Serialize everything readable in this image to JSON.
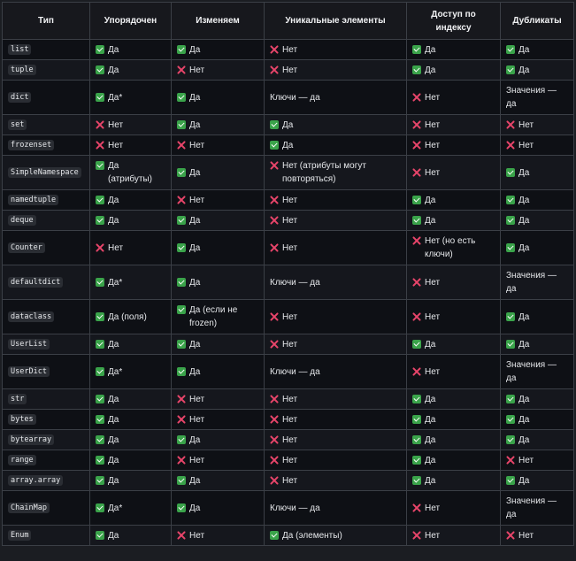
{
  "headers": [
    "Тип",
    "Упорядочен",
    "Изменяем",
    "Уникальные элементы",
    "Доступ по индексу",
    "Дубликаты"
  ],
  "rows": [
    {
      "type": "list",
      "h": "r1",
      "cells": [
        {
          "icon": "yes",
          "text": "Да"
        },
        {
          "icon": "yes",
          "text": "Да"
        },
        {
          "icon": "no",
          "text": "Нет"
        },
        {
          "icon": "yes",
          "text": "Да"
        },
        {
          "icon": "yes",
          "text": "Да"
        }
      ]
    },
    {
      "type": "tuple",
      "h": "r1",
      "cells": [
        {
          "icon": "yes",
          "text": "Да"
        },
        {
          "icon": "no",
          "text": "Нет"
        },
        {
          "icon": "no",
          "text": "Нет"
        },
        {
          "icon": "yes",
          "text": "Да"
        },
        {
          "icon": "yes",
          "text": "Да"
        }
      ]
    },
    {
      "type": "dict",
      "h": "r2",
      "cells": [
        {
          "icon": "yes",
          "text": "Да*"
        },
        {
          "icon": "yes",
          "text": "Да"
        },
        {
          "icon": "",
          "text": "Ключи — да"
        },
        {
          "icon": "no",
          "text": "Нет"
        },
        {
          "icon": "",
          "text": "Значения — да"
        }
      ]
    },
    {
      "type": "set",
      "h": "r1",
      "cells": [
        {
          "icon": "no",
          "text": "Нет"
        },
        {
          "icon": "yes",
          "text": "Да"
        },
        {
          "icon": "yes",
          "text": "Да"
        },
        {
          "icon": "no",
          "text": "Нет"
        },
        {
          "icon": "no",
          "text": "Нет"
        }
      ]
    },
    {
      "type": "frozenset",
      "h": "r1",
      "cells": [
        {
          "icon": "no",
          "text": "Нет"
        },
        {
          "icon": "no",
          "text": "Нет"
        },
        {
          "icon": "yes",
          "text": "Да"
        },
        {
          "icon": "no",
          "text": "Нет"
        },
        {
          "icon": "no",
          "text": "Нет"
        }
      ]
    },
    {
      "type": "SimpleNamespace",
      "h": "r2",
      "cells": [
        {
          "icon": "yes",
          "text": "Да (атрибуты)"
        },
        {
          "icon": "yes",
          "text": "Да"
        },
        {
          "icon": "no",
          "text": "Нет (атрибуты могут повторяться)"
        },
        {
          "icon": "no",
          "text": "Нет"
        },
        {
          "icon": "yes",
          "text": "Да"
        }
      ]
    },
    {
      "type": "namedtuple",
      "h": "r1",
      "cells": [
        {
          "icon": "yes",
          "text": "Да"
        },
        {
          "icon": "no",
          "text": "Нет"
        },
        {
          "icon": "no",
          "text": "Нет"
        },
        {
          "icon": "yes",
          "text": "Да"
        },
        {
          "icon": "yes",
          "text": "Да"
        }
      ]
    },
    {
      "type": "deque",
      "h": "r1",
      "cells": [
        {
          "icon": "yes",
          "text": "Да"
        },
        {
          "icon": "yes",
          "text": "Да"
        },
        {
          "icon": "no",
          "text": "Нет"
        },
        {
          "icon": "yes",
          "text": "Да"
        },
        {
          "icon": "yes",
          "text": "Да"
        }
      ]
    },
    {
      "type": "Counter",
      "h": "r2",
      "cells": [
        {
          "icon": "no",
          "text": "Нет"
        },
        {
          "icon": "yes",
          "text": "Да"
        },
        {
          "icon": "no",
          "text": "Нет"
        },
        {
          "icon": "no",
          "text": "Нет (но есть ключи)"
        },
        {
          "icon": "yes",
          "text": "Да"
        }
      ]
    },
    {
      "type": "defaultdict",
      "h": "r2",
      "cells": [
        {
          "icon": "yes",
          "text": "Да*"
        },
        {
          "icon": "yes",
          "text": "Да"
        },
        {
          "icon": "",
          "text": "Ключи — да"
        },
        {
          "icon": "no",
          "text": "Нет"
        },
        {
          "icon": "",
          "text": "Значения — да"
        }
      ]
    },
    {
      "type": "dataclass",
      "h": "r2",
      "cells": [
        {
          "icon": "yes",
          "text": "Да (поля)"
        },
        {
          "icon": "yes",
          "text": "Да (если не frozen)"
        },
        {
          "icon": "no",
          "text": "Нет"
        },
        {
          "icon": "no",
          "text": "Нет"
        },
        {
          "icon": "yes",
          "text": "Да"
        }
      ]
    },
    {
      "type": "UserList",
      "h": "r1",
      "cells": [
        {
          "icon": "yes",
          "text": "Да"
        },
        {
          "icon": "yes",
          "text": "Да"
        },
        {
          "icon": "no",
          "text": "Нет"
        },
        {
          "icon": "yes",
          "text": "Да"
        },
        {
          "icon": "yes",
          "text": "Да"
        }
      ]
    },
    {
      "type": "UserDict",
      "h": "r2",
      "cells": [
        {
          "icon": "yes",
          "text": "Да*"
        },
        {
          "icon": "yes",
          "text": "Да"
        },
        {
          "icon": "",
          "text": "Ключи — да"
        },
        {
          "icon": "no",
          "text": "Нет"
        },
        {
          "icon": "",
          "text": "Значения — да"
        }
      ]
    },
    {
      "type": "str",
      "h": "r1",
      "cells": [
        {
          "icon": "yes",
          "text": "Да"
        },
        {
          "icon": "no",
          "text": "Нет"
        },
        {
          "icon": "no",
          "text": "Нет"
        },
        {
          "icon": "yes",
          "text": "Да"
        },
        {
          "icon": "yes",
          "text": "Да"
        }
      ]
    },
    {
      "type": "bytes",
      "h": "r1",
      "cells": [
        {
          "icon": "yes",
          "text": "Да"
        },
        {
          "icon": "no",
          "text": "Нет"
        },
        {
          "icon": "no",
          "text": "Нет"
        },
        {
          "icon": "yes",
          "text": "Да"
        },
        {
          "icon": "yes",
          "text": "Да"
        }
      ]
    },
    {
      "type": "bytearray",
      "h": "r1",
      "cells": [
        {
          "icon": "yes",
          "text": "Да"
        },
        {
          "icon": "yes",
          "text": "Да"
        },
        {
          "icon": "no",
          "text": "Нет"
        },
        {
          "icon": "yes",
          "text": "Да"
        },
        {
          "icon": "yes",
          "text": "Да"
        }
      ]
    },
    {
      "type": "range",
      "h": "r1",
      "cells": [
        {
          "icon": "yes",
          "text": "Да"
        },
        {
          "icon": "no",
          "text": "Нет"
        },
        {
          "icon": "no",
          "text": "Нет"
        },
        {
          "icon": "yes",
          "text": "Да"
        },
        {
          "icon": "no",
          "text": "Нет"
        }
      ]
    },
    {
      "type": "array.array",
      "h": "r1",
      "cells": [
        {
          "icon": "yes",
          "text": "Да"
        },
        {
          "icon": "yes",
          "text": "Да"
        },
        {
          "icon": "no",
          "text": "Нет"
        },
        {
          "icon": "yes",
          "text": "Да"
        },
        {
          "icon": "yes",
          "text": "Да"
        }
      ]
    },
    {
      "type": "ChainMap",
      "h": "r2",
      "cells": [
        {
          "icon": "yes",
          "text": "Да*"
        },
        {
          "icon": "yes",
          "text": "Да"
        },
        {
          "icon": "",
          "text": "Ключи — да"
        },
        {
          "icon": "no",
          "text": "Нет"
        },
        {
          "icon": "",
          "text": "Значения — да"
        }
      ]
    },
    {
      "type": "Enum",
      "h": "r1",
      "cells": [
        {
          "icon": "yes",
          "text": "Да"
        },
        {
          "icon": "no",
          "text": "Нет"
        },
        {
          "icon": "yes",
          "text": "Да (элементы)"
        },
        {
          "icon": "no",
          "text": "Нет"
        },
        {
          "icon": "no",
          "text": "Нет"
        }
      ]
    }
  ],
  "icon_names": {
    "yes": "check-mark-icon",
    "no": "cross-mark-icon"
  },
  "colors": {
    "yes": "#3aa34a",
    "no": "#e8456a",
    "background": "#1b1d22"
  }
}
